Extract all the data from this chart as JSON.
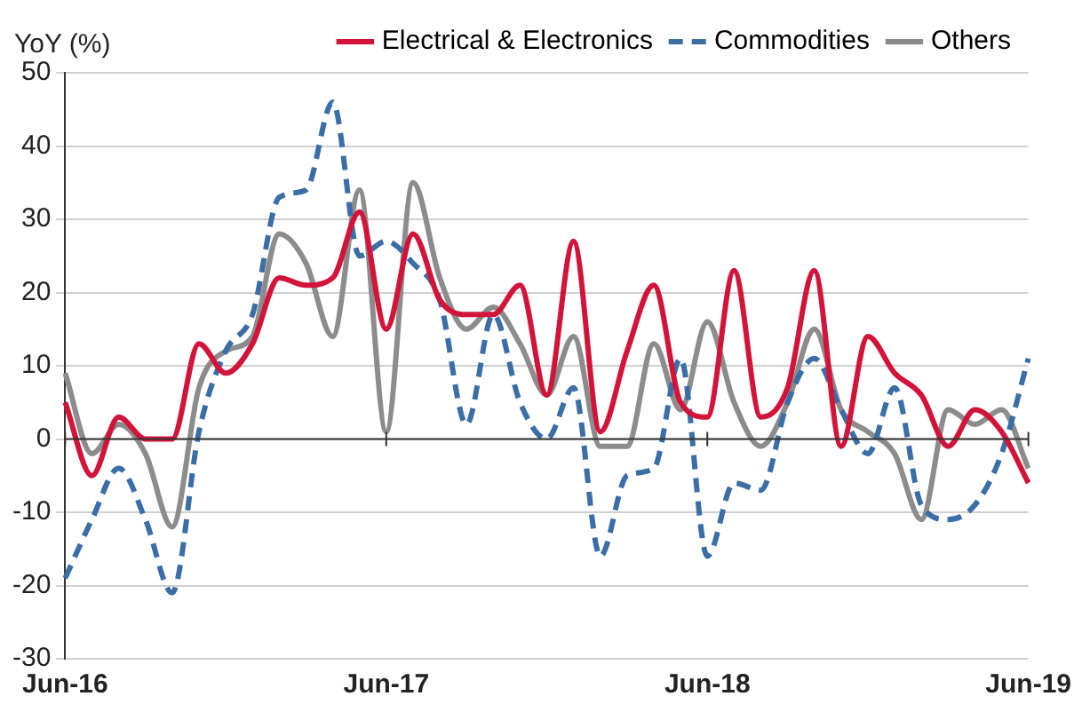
{
  "chart_data": {
    "type": "line",
    "ylabel": "YoY (%)",
    "categories": [
      "Jun-16",
      null,
      null,
      null,
      null,
      null,
      null,
      null,
      null,
      null,
      null,
      null,
      "Jun-17",
      null,
      null,
      null,
      null,
      null,
      null,
      null,
      null,
      null,
      null,
      null,
      "Jun-18",
      null,
      null,
      null,
      null,
      null,
      null,
      null,
      null,
      null,
      null,
      null,
      "Jun-19"
    ],
    "series": [
      {
        "name": "Electrical & Electronics",
        "color": "#d2143a",
        "line_style": "solid",
        "values": [
          5,
          -5,
          3,
          0,
          0,
          13,
          9,
          13,
          22,
          21,
          22,
          31,
          15,
          28,
          19,
          17,
          17,
          21,
          6,
          27,
          1,
          12,
          21,
          5,
          3,
          23,
          3,
          7,
          23,
          -1,
          14,
          9,
          6,
          -1,
          4,
          1,
          -6
        ]
      },
      {
        "name": "Commodities",
        "color": "#3b6ea5",
        "line_style": "dashed",
        "values": [
          -19,
          -11,
          -4,
          -11,
          -21,
          1,
          12,
          17,
          33,
          34,
          46,
          25,
          27,
          24,
          19,
          2,
          17,
          5,
          0,
          7,
          -16,
          -5,
          -4,
          11,
          -16,
          -6,
          -7,
          5,
          11,
          4,
          -2,
          7,
          -9,
          -11,
          -9,
          -2,
          11
        ]
      },
      {
        "name": "Others",
        "color": "#8c8c8c",
        "line_style": "solid",
        "values": [
          9,
          -2,
          2,
          -2,
          -12,
          7,
          12,
          14,
          28,
          24,
          14,
          34,
          1,
          35,
          22,
          15,
          18,
          13,
          6,
          14,
          -1,
          -1,
          13,
          4,
          16,
          5,
          -1,
          5,
          15,
          4,
          1,
          -2,
          -11,
          4,
          2,
          4,
          -4
        ]
      }
    ],
    "ylim": [
      -30,
      50
    ],
    "yticks": [
      -30,
      -20,
      -10,
      0,
      10,
      20,
      30,
      40,
      50
    ],
    "grid": "y",
    "legend": "top right",
    "marker": "none"
  }
}
